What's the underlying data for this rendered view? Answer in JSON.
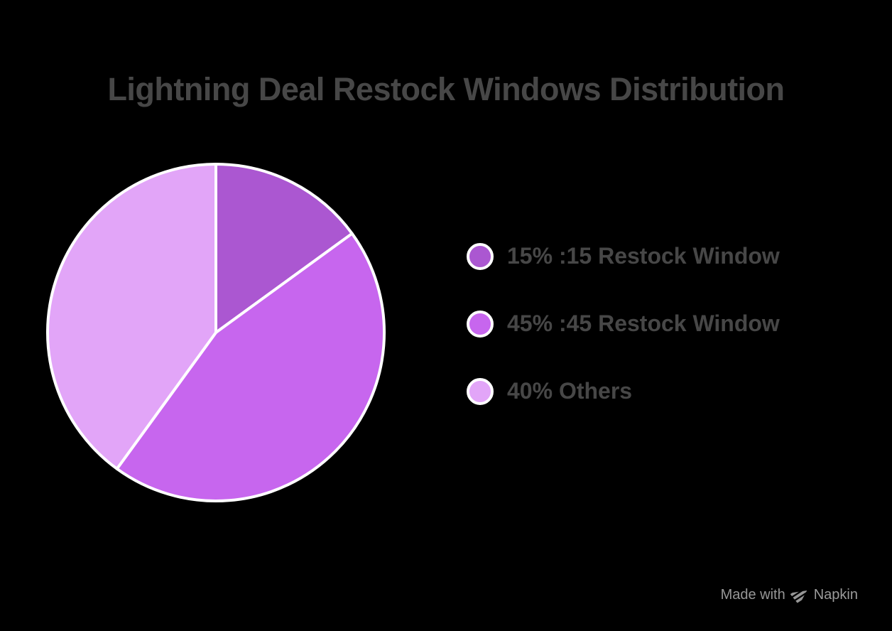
{
  "title": "Lightning Deal Restock Windows Distribution",
  "chart_data": {
    "type": "pie",
    "title": "Lightning Deal Restock Windows Distribution",
    "labels": [
      ":15 Restock Window",
      ":45 Restock Window",
      "Others"
    ],
    "values": [
      15,
      45,
      40
    ],
    "unit": "%",
    "colors": [
      "#ab57d1",
      "#c766ee",
      "#e2a5f8"
    ],
    "legend_labels": [
      "15% :15 Restock Window",
      "45% :45 Restock Window",
      "40% Others"
    ],
    "start_angle": "top",
    "direction": "clockwise",
    "legend_position": "right",
    "slice_border_color": "#ffffff",
    "background_color": "#000000"
  },
  "legend": {
    "items": [
      {
        "label": "15% :15 Restock Window",
        "color": "#ab57d1"
      },
      {
        "label": "45% :45 Restock Window",
        "color": "#c766ee"
      },
      {
        "label": "40% Others",
        "color": "#e2a5f8"
      }
    ]
  },
  "footer": {
    "made_with": "Made with",
    "brand": "Napkin"
  },
  "colors": {
    "background": "#000000",
    "title_text": "#474747",
    "legend_text": "#474747",
    "footer_text": "#969696",
    "slice_stroke": "#ffffff"
  }
}
